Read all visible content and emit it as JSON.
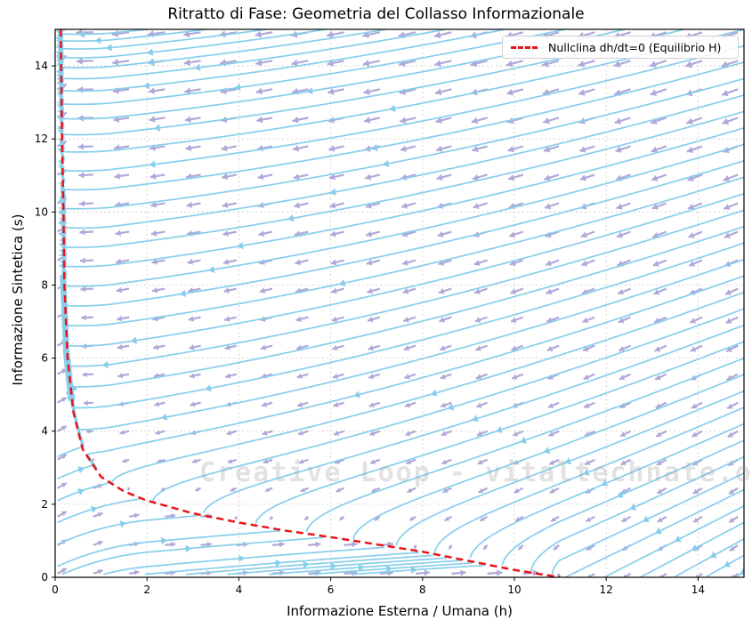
{
  "chart_data": {
    "type": "streamplot",
    "title": "Ritratto di Fase: Geometria del Collasso Informazionale",
    "xlabel": "Informazione Esterna / Umana (h)",
    "ylabel": "Informazione Sintetica (s)",
    "xlim": [
      0,
      15
    ],
    "ylim": [
      0,
      15
    ],
    "xticks": [
      0,
      2,
      4,
      6,
      8,
      10,
      12,
      14
    ],
    "yticks": [
      0,
      2,
      4,
      6,
      8,
      10,
      12,
      14
    ],
    "grid": true,
    "legend_position": "upper right",
    "series": [
      {
        "name": "Nullclina dh/dt=0 (Equilibrio H)",
        "style": "dashed",
        "color": "#e8141a",
        "points": [
          [
            0.12,
            15
          ],
          [
            0.15,
            12
          ],
          [
            0.18,
            10
          ],
          [
            0.2,
            8
          ],
          [
            0.27,
            6
          ],
          [
            0.4,
            4.5
          ],
          [
            0.6,
            3.5
          ],
          [
            1.0,
            2.75
          ],
          [
            1.5,
            2.35
          ],
          [
            2.0,
            2.1
          ],
          [
            3.0,
            1.75
          ],
          [
            4.0,
            1.5
          ],
          [
            5.0,
            1.28
          ],
          [
            6.0,
            1.1
          ],
          [
            7.0,
            0.9
          ],
          [
            8.0,
            0.7
          ],
          [
            9.0,
            0.45
          ],
          [
            10.0,
            0.2
          ],
          [
            11.0,
            0.0
          ]
        ]
      },
      {
        "name": "streamlines",
        "color": "#87ceeb"
      },
      {
        "name": "quiver vectors",
        "color": "#b0a8d8"
      }
    ],
    "annotations": [
      "Creative Loop - vitaltechnate.org"
    ]
  },
  "legend": {
    "label": "Nullclina dh/dt=0 (Equilibrio H)"
  },
  "watermark": "Creative Loop - vitaltechnate.org",
  "colors": {
    "stream": "#87ceeb",
    "quiver": "#b0a8d8",
    "nullcline": "#e8141a",
    "grid": "#cccccc"
  }
}
